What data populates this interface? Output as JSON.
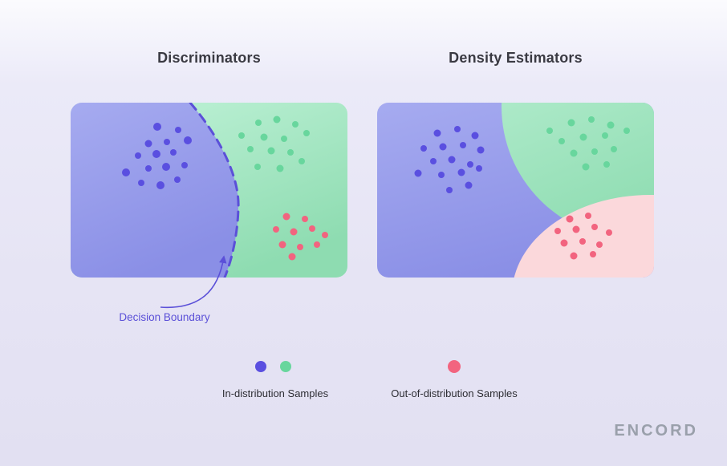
{
  "panels": {
    "discriminators": {
      "title": "Discriminators"
    },
    "density_estimators": {
      "title": "Density Estimators"
    }
  },
  "boundary": {
    "label": "Decision Boundary"
  },
  "legend": {
    "in_distribution_label": "In-distribution Samples",
    "out_of_distribution_label": "Out-of-distribution Samples"
  },
  "logo": {
    "text": "encord"
  },
  "colors": {
    "in_purple": "#5a4fe0",
    "in_green": "#68d69d",
    "out_pink": "#f2647f",
    "boundary": "#5b50d8",
    "blue_region_light": "#a6abf0",
    "blue_region_dark": "#8a8fe6",
    "green_region_light": "#c2f3d9",
    "green_region_dark": "#8edcb1",
    "pink_region": "#fbd8db"
  },
  "dots": {
    "discriminators": {
      "purple": [
        [
          108,
          30,
          5
        ],
        [
          134,
          34,
          4
        ],
        [
          97,
          51,
          4.5
        ],
        [
          120,
          49,
          4
        ],
        [
          146,
          47,
          5
        ],
        [
          84,
          66,
          4
        ],
        [
          107,
          64,
          5
        ],
        [
          128,
          62,
          4
        ],
        [
          69,
          87,
          5
        ],
        [
          97,
          82,
          4
        ],
        [
          119,
          80,
          5
        ],
        [
          142,
          78,
          4
        ],
        [
          88,
          100,
          4
        ],
        [
          112,
          103,
          5
        ],
        [
          133,
          96,
          4
        ]
      ],
      "green": [
        [
          234,
          25,
          4
        ],
        [
          257,
          21,
          4.5
        ],
        [
          280,
          27,
          4
        ],
        [
          213,
          41,
          4
        ],
        [
          241,
          43,
          4.5
        ],
        [
          266,
          45,
          4
        ],
        [
          294,
          38,
          4
        ],
        [
          224,
          58,
          4
        ],
        [
          250,
          60,
          4.5
        ],
        [
          274,
          62,
          4
        ],
        [
          233,
          80,
          4
        ],
        [
          261,
          82,
          4.5
        ],
        [
          288,
          73,
          4
        ]
      ],
      "pink": [
        [
          269,
          142,
          4.5
        ],
        [
          292,
          145,
          4
        ],
        [
          256,
          158,
          4
        ],
        [
          278,
          161,
          4.5
        ],
        [
          301,
          157,
          4
        ],
        [
          317,
          165,
          4
        ],
        [
          264,
          177,
          4.5
        ],
        [
          286,
          180,
          4
        ],
        [
          307,
          177,
          4
        ],
        [
          276,
          192,
          4.5
        ]
      ]
    },
    "density_estimators": {
      "purple": [
        [
          75,
          38,
          4.5
        ],
        [
          100,
          33,
          4
        ],
        [
          122,
          41,
          4.5
        ],
        [
          58,
          57,
          4
        ],
        [
          82,
          55,
          4.5
        ],
        [
          107,
          53,
          4
        ],
        [
          129,
          59,
          4.5
        ],
        [
          70,
          73,
          4
        ],
        [
          93,
          71,
          4.5
        ],
        [
          116,
          77,
          4
        ],
        [
          51,
          88,
          4.5
        ],
        [
          80,
          90,
          4
        ],
        [
          105,
          87,
          4.5
        ],
        [
          127,
          82,
          4
        ],
        [
          90,
          109,
          4
        ],
        [
          114,
          103,
          4.5
        ]
      ],
      "green": [
        [
          215,
          35,
          4
        ],
        [
          242,
          25,
          4.5
        ],
        [
          267,
          21,
          4
        ],
        [
          291,
          28,
          4.5
        ],
        [
          230,
          48,
          4
        ],
        [
          257,
          43,
          4.5
        ],
        [
          284,
          41,
          4
        ],
        [
          311,
          35,
          4
        ],
        [
          245,
          63,
          4.5
        ],
        [
          271,
          61,
          4
        ],
        [
          295,
          58,
          4
        ],
        [
          260,
          80,
          4.5
        ],
        [
          286,
          77,
          4
        ]
      ],
      "pink": [
        [
          240,
          145,
          4.5
        ],
        [
          263,
          141,
          4
        ],
        [
          225,
          160,
          4
        ],
        [
          248,
          158,
          4.5
        ],
        [
          271,
          155,
          4
        ],
        [
          289,
          162,
          4
        ],
        [
          233,
          175,
          4.5
        ],
        [
          256,
          173,
          4
        ],
        [
          277,
          177,
          4
        ],
        [
          245,
          191,
          4.5
        ],
        [
          269,
          189,
          4
        ]
      ]
    }
  }
}
